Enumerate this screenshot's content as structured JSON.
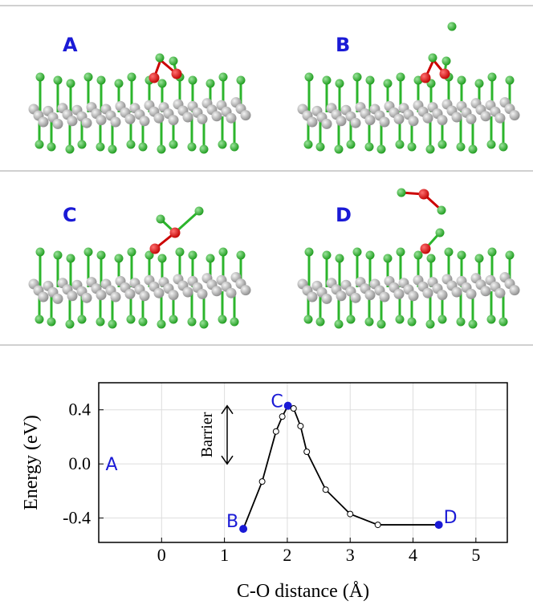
{
  "panels": [
    {
      "label": "A"
    },
    {
      "label": "B"
    },
    {
      "label": "C"
    },
    {
      "label": "D"
    }
  ],
  "chart_data": {
    "type": "line",
    "x_label": "C-O distance (Å)",
    "y_label": "Energy (eV)",
    "x": [
      1.3,
      1.6,
      1.82,
      1.92,
      2.01,
      2.1,
      2.21,
      2.31,
      2.61,
      3.0,
      3.44,
      4.41
    ],
    "values": [
      -0.48,
      -0.13,
      0.24,
      0.35,
      0.43,
      0.41,
      0.28,
      0.09,
      -0.19,
      -0.37,
      -0.45,
      -0.45
    ],
    "point_labels": [
      "B",
      null,
      null,
      null,
      "C",
      null,
      null,
      null,
      null,
      null,
      null,
      "D"
    ],
    "annotations": [
      "A",
      "Barrier"
    ],
    "color": "#000000",
    "highlight_color": "#1a1ad6",
    "xlim": [
      -1,
      5.5
    ],
    "xticks": [
      0,
      1,
      2,
      3,
      4,
      5
    ],
    "ylim": [
      -0.58,
      0.6
    ],
    "yticks": [
      0.4,
      {
        "value": 0,
        "label": "0.0"
      },
      -0.4
    ],
    "grid": true
  }
}
